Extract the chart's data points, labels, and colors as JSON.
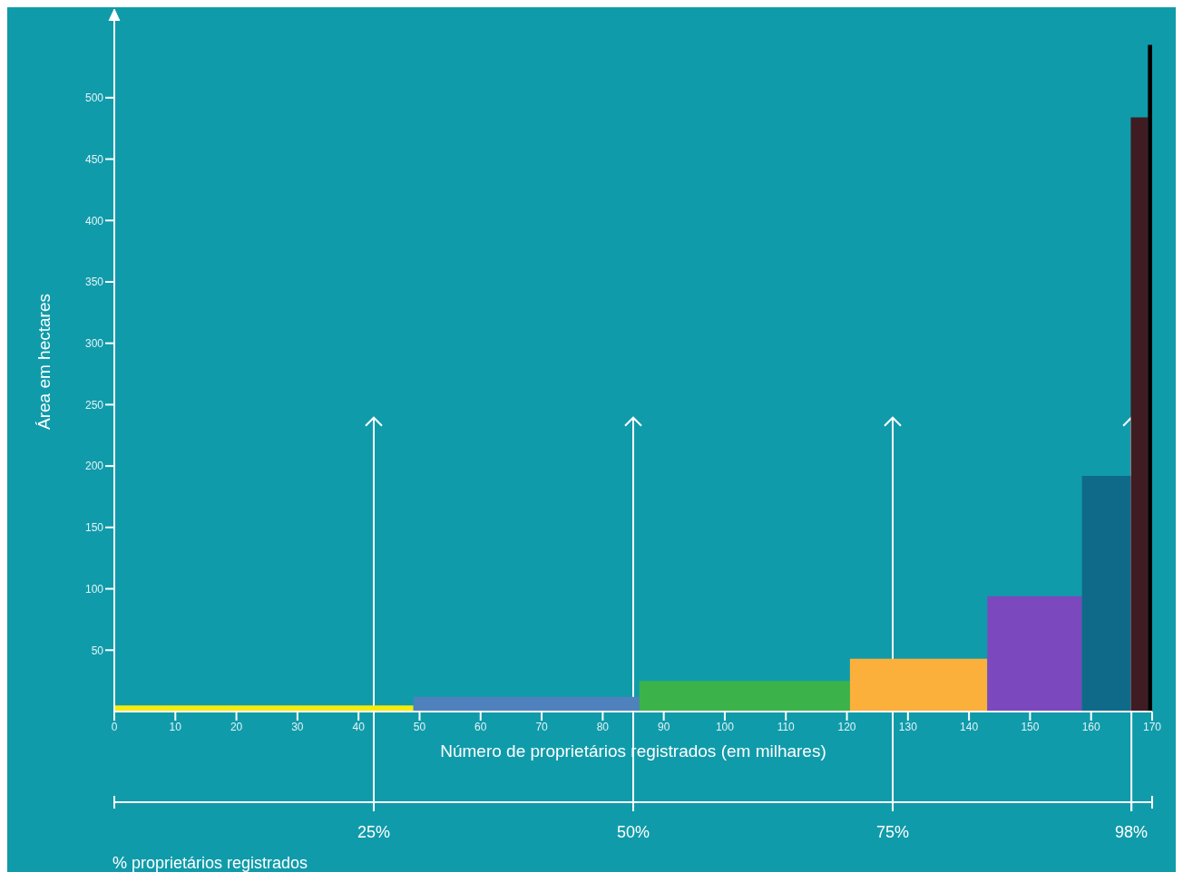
{
  "chart_data": {
    "type": "histogram",
    "xlabel": "Número de proprietários registrados (em milhares)",
    "ylabel": "Área em hectares",
    "bins": [
      0,
      49,
      86,
      120.5,
      143,
      158.5,
      166.5,
      169.3,
      170
    ],
    "values": [
      5,
      12,
      25,
      43,
      94,
      192,
      484,
      543
    ],
    "colors": [
      "#f5ec0e",
      "#4f81bd",
      "#3bb34a",
      "#fbb03b",
      "#7b48be",
      "#0f6a8a",
      "#3f1c21",
      "#000000"
    ],
    "xlim": [
      0,
      170
    ],
    "xticks": [
      0,
      10,
      20,
      30,
      40,
      50,
      60,
      70,
      80,
      90,
      100,
      110,
      120,
      130,
      140,
      150,
      160,
      170
    ],
    "ylim": [
      0,
      570
    ],
    "yticks": [
      50,
      100,
      150,
      200,
      250,
      300,
      350,
      400,
      450,
      500
    ],
    "x2lim": [
      0,
      100
    ],
    "x2ticks": [
      {
        "value": 25,
        "label": "25%"
      },
      {
        "value": 50,
        "label": "50%"
      },
      {
        "value": 75,
        "label": "75%"
      },
      {
        "value": 98,
        "label": "98%"
      }
    ],
    "x2label": "% proprietários registrados",
    "ref_lines": [
      {
        "axis": "x2",
        "value": 25,
        "color": "#ffffff"
      },
      {
        "axis": "x2",
        "value": 50,
        "color": "#ffffff"
      },
      {
        "axis": "x2",
        "value": 75,
        "color": "#ffffff"
      },
      {
        "axis": "x2",
        "value": 98,
        "color": "#ffffff"
      }
    ]
  }
}
